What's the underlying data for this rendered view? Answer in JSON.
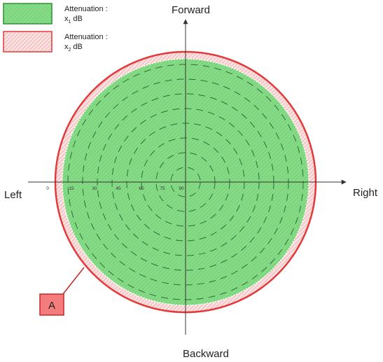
{
  "legend": {
    "items": [
      {
        "label_line1": "Attenuation :",
        "label_x": "x",
        "label_sub": "1",
        "label_unit": "dB",
        "fill": "#86dc86",
        "border": "#2f8f3a"
      },
      {
        "label_line1": "Attenuation :",
        "label_x": "x",
        "label_sub": "2",
        "label_unit": "dB",
        "fill": "#f4b8b8",
        "border": "#e23a3a"
      }
    ]
  },
  "directions": {
    "forward": "Forward",
    "backward": "Backward",
    "left": "Left",
    "right": "Right"
  },
  "angle_ticks": [
    "0",
    "15",
    "30",
    "45",
    "60",
    "75",
    "90"
  ],
  "marker": {
    "label": "A",
    "fill": "#f47c7c",
    "border": "#c62828"
  },
  "colors": {
    "inner_fill": "#86dc86",
    "outer_ring": "#f4b8b8",
    "outer_border": "#e23a3a",
    "dash": "#2e6b3a",
    "axis": "#333333"
  }
}
